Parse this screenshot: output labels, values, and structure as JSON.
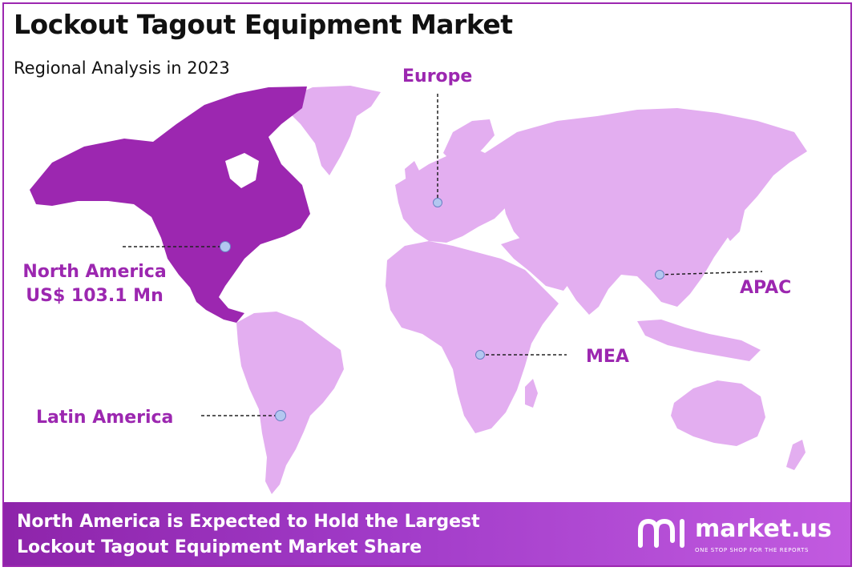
{
  "title": "Lockout Tagout Equipment Market",
  "subtitle": "Regional Analysis in 2023",
  "regions": {
    "europe": "Europe",
    "north_america": "North America",
    "north_america_value": "US$ 103.1 Mn",
    "apac": "APAC",
    "mea": "MEA",
    "latin_america": "Latin America"
  },
  "colors": {
    "highlight": "#9c27b0",
    "land": "#e3aef0",
    "accent_text": "#9c27b0"
  },
  "footer": {
    "line1": "North America is Expected to Hold the Largest",
    "line2": "Lockout Tagout Equipment Market Share"
  },
  "brand": {
    "name": "market.us",
    "tagline": "ONE STOP SHOP FOR THE REPORTS",
    "logo_icon": "market-us-logo-icon"
  }
}
